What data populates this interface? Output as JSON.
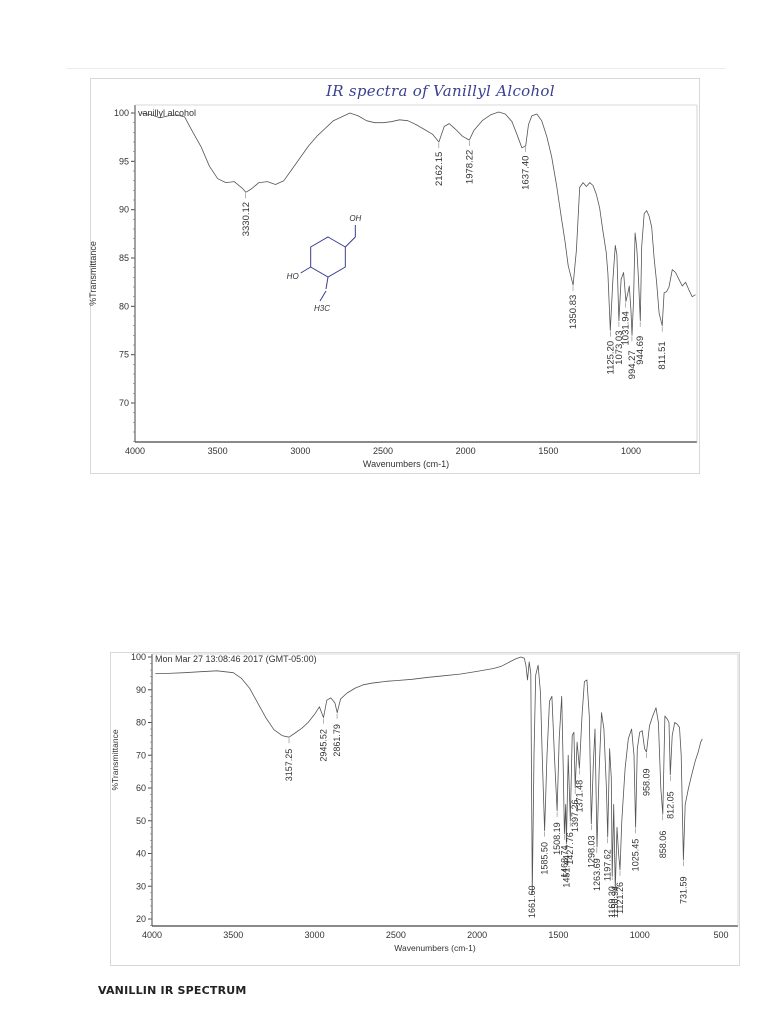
{
  "page": {
    "caption": "VANILLIN IR SPECTRUM"
  },
  "chart_data": [
    {
      "type": "line",
      "title": "IR spectra of Vanillyl Alcohol",
      "legend": "vanillyl alcohol",
      "xlabel": "Wavenumbers (cm-1)",
      "ylabel": "%Transmittance",
      "xlim": [
        4000,
        600
      ],
      "ylim": [
        66,
        100
      ],
      "x_ticks": [
        4000,
        3500,
        3000,
        2500,
        2000,
        1500,
        1000
      ],
      "y_ticks": [
        100,
        95,
        90,
        85,
        80,
        75,
        70
      ],
      "grid": false,
      "structure_annotations": [
        "OH",
        "HO",
        "H3C"
      ],
      "peaks": [
        {
          "label": "3330.12",
          "x": 3330.12,
          "y": 91.8
        },
        {
          "label": "2162.15",
          "x": 2162.15,
          "y": 97.0
        },
        {
          "label": "1978.22",
          "x": 1978.22,
          "y": 97.2
        },
        {
          "label": "1637.40",
          "x": 1637.4,
          "y": 96.6
        },
        {
          "label": "1350.83",
          "x": 1350.83,
          "y": 82.2
        },
        {
          "label": "1125.20",
          "x": 1125.2,
          "y": 77.5
        },
        {
          "label": "1073.03",
          "x": 1073.03,
          "y": 78.5
        },
        {
          "label": "1031.94",
          "x": 1031.94,
          "y": 80.5
        },
        {
          "label": "994.27",
          "x": 994.27,
          "y": 77.0
        },
        {
          "label": "944.69",
          "x": 944.69,
          "y": 78.5
        },
        {
          "label": "811.51",
          "x": 811.51,
          "y": 78.0
        }
      ],
      "series": [
        {
          "name": "vanillyl alcohol",
          "x": [
            3960,
            3900,
            3850,
            3800,
            3750,
            3700,
            3650,
            3600,
            3550,
            3500,
            3450,
            3400,
            3350,
            3330,
            3300,
            3250,
            3200,
            3150,
            3100,
            3050,
            3000,
            2950,
            2900,
            2850,
            2800,
            2750,
            2700,
            2650,
            2600,
            2550,
            2500,
            2450,
            2400,
            2350,
            2300,
            2250,
            2200,
            2162,
            2130,
            2100,
            2060,
            2020,
            1978,
            1950,
            1900,
            1850,
            1800,
            1760,
            1720,
            1690,
            1660,
            1637,
            1620,
            1600,
            1570,
            1540,
            1510,
            1480,
            1450,
            1420,
            1400,
            1380,
            1350,
            1330,
            1310,
            1290,
            1270,
            1250,
            1230,
            1210,
            1190,
            1170,
            1150,
            1140,
            1125,
            1110,
            1095,
            1085,
            1073,
            1060,
            1045,
            1031,
            1020,
            1010,
            1000,
            994,
            985,
            975,
            965,
            955,
            944,
            935,
            920,
            905,
            890,
            875,
            860,
            845,
            830,
            811,
            800,
            785,
            770,
            750,
            730,
            710,
            690,
            670,
            650,
            630,
            610
          ],
          "y": [
            100,
            99.8,
            99.5,
            99.7,
            99.8,
            99.6,
            98,
            96.5,
            94.5,
            93.2,
            92.8,
            92.9,
            92.2,
            91.8,
            92.1,
            92.8,
            92.9,
            92.6,
            93,
            94.2,
            95.4,
            96.6,
            97.6,
            98.4,
            99.2,
            99.6,
            100,
            99.7,
            99.2,
            99.0,
            99.0,
            99.1,
            99.3,
            99.2,
            98.8,
            98.3,
            97.8,
            97.0,
            98.6,
            98.9,
            98.3,
            97.6,
            97.2,
            98.2,
            99.2,
            99.8,
            100.1,
            99.9,
            99.1,
            97.8,
            96.4,
            96.6,
            98.8,
            99.7,
            99.9,
            99.2,
            97.6,
            95.5,
            92.5,
            89.0,
            86.8,
            84.2,
            82.2,
            85.8,
            92.3,
            92.8,
            92.4,
            92.8,
            92.5,
            91.6,
            90.2,
            87.8,
            85.6,
            83.4,
            77.5,
            82.6,
            86.3,
            85.3,
            78.5,
            82.8,
            83.5,
            80.5,
            81.3,
            82.1,
            79.5,
            77.0,
            80.5,
            87.6,
            86.0,
            83.0,
            78.5,
            86.2,
            89.6,
            89.9,
            89.3,
            88.2,
            85.0,
            82.5,
            79.3,
            78.0,
            81.4,
            81.5,
            82.0,
            83.8,
            83.5,
            82.8,
            82.1,
            82.5,
            81.7,
            81.0,
            81.2
          ]
        }
      ]
    },
    {
      "type": "line",
      "title": "Mon Mar 27 13:08:46 2017 (GMT-05:00)",
      "xlabel": "Wavenumbers (cm-1)",
      "ylabel": "%Transmittance",
      "xlim": [
        4000,
        500
      ],
      "ylim": [
        18,
        100
      ],
      "x_ticks": [
        4000,
        3500,
        3000,
        2500,
        2000,
        1500,
        1000,
        500
      ],
      "y_ticks": [
        100,
        90,
        80,
        70,
        60,
        50,
        40,
        30,
        20
      ],
      "grid": false,
      "peaks": [
        {
          "label": "3157.25",
          "x": 3157.25,
          "y": 75.5
        },
        {
          "label": "2945.52",
          "x": 2945.52,
          "y": 81.5
        },
        {
          "label": "2861.79",
          "x": 2861.79,
          "y": 83.0
        },
        {
          "label": "1661.60",
          "x": 1661.6,
          "y": 28.0
        },
        {
          "label": "1585.50",
          "x": 1585.5,
          "y": 47.0
        },
        {
          "label": "1508.19",
          "x": 1508.19,
          "y": 53.0
        },
        {
          "label": "1463.74",
          "x": 1463.74,
          "y": 46.0
        },
        {
          "label": "1451.44",
          "x": 1451.44,
          "y": 43.0
        },
        {
          "label": "1427.76",
          "x": 1427.76,
          "y": 50.0
        },
        {
          "label": "1397.26",
          "x": 1397.26,
          "y": 60.0
        },
        {
          "label": "1371.48",
          "x": 1371.48,
          "y": 66.0
        },
        {
          "label": "1298.03",
          "x": 1298.03,
          "y": 49.0
        },
        {
          "label": "1263.69",
          "x": 1263.69,
          "y": 42.0
        },
        {
          "label": "1197.62",
          "x": 1197.62,
          "y": 45.0
        },
        {
          "label": "1169.30",
          "x": 1169.3,
          "y": 33.0
        },
        {
          "label": "1150.94",
          "x": 1150.94,
          "y": 29.0
        },
        {
          "label": "1121.26",
          "x": 1121.26,
          "y": 35.0
        },
        {
          "label": "1025.45",
          "x": 1025.45,
          "y": 48.0
        },
        {
          "label": "958.09",
          "x": 958.09,
          "y": 71.0
        },
        {
          "label": "858.06",
          "x": 858.06,
          "y": 52.0
        },
        {
          "label": "812.05",
          "x": 812.05,
          "y": 64.0
        },
        {
          "label": "731.59",
          "x": 731.59,
          "y": 38.0
        }
      ],
      "series": [
        {
          "name": "vanillin",
          "x": [
            3980,
            3900,
            3800,
            3700,
            3600,
            3500,
            3450,
            3400,
            3350,
            3300,
            3250,
            3200,
            3157,
            3120,
            3080,
            3040,
            3000,
            2970,
            2945,
            2925,
            2900,
            2875,
            2861,
            2840,
            2800,
            2750,
            2700,
            2650,
            2600,
            2550,
            2500,
            2400,
            2300,
            2200,
            2100,
            2000,
            1900,
            1850,
            1800,
            1760,
            1730,
            1710,
            1700,
            1690,
            1680,
            1670,
            1661,
            1650,
            1640,
            1625,
            1610,
            1600,
            1585,
            1570,
            1555,
            1540,
            1525,
            1508,
            1495,
            1480,
            1470,
            1463,
            1455,
            1451,
            1440,
            1427,
            1415,
            1405,
            1397,
            1385,
            1371,
            1355,
            1340,
            1325,
            1310,
            1298,
            1285,
            1275,
            1263,
            1250,
            1235,
            1220,
            1205,
            1197,
            1185,
            1175,
            1169,
            1160,
            1150,
            1140,
            1130,
            1121,
            1110,
            1090,
            1070,
            1050,
            1035,
            1025,
            1015,
            1000,
            985,
            970,
            958,
            940,
            920,
            900,
            885,
            870,
            858,
            845,
            830,
            820,
            812,
            800,
            785,
            770,
            755,
            745,
            731,
            720,
            700,
            680,
            660,
            640,
            625,
            615
          ],
          "y": [
            95,
            95,
            95.2,
            95.5,
            95.8,
            95.2,
            93.5,
            90.5,
            86.0,
            81.5,
            77.8,
            76.0,
            75.5,
            76.8,
            78.2,
            80.0,
            82.5,
            84.8,
            81.5,
            86.8,
            87.5,
            86.0,
            83.0,
            87.2,
            89.0,
            90.5,
            91.5,
            92.0,
            92.3,
            92.6,
            92.8,
            93.2,
            93.8,
            94.3,
            94.8,
            95.6,
            96.5,
            97.2,
            98.5,
            99.5,
            100.0,
            99.6,
            97.5,
            93.0,
            98.5,
            95.0,
            28.0,
            70.0,
            94.5,
            97.5,
            89.0,
            70.0,
            47.0,
            70.0,
            86.5,
            88.0,
            70.0,
            53.0,
            75.0,
            88.0,
            65.0,
            46.0,
            55.0,
            43.0,
            70.0,
            50.0,
            76.0,
            77.0,
            60.0,
            74.0,
            66.0,
            82.0,
            92.5,
            93.0,
            82.0,
            49.0,
            68.0,
            78.0,
            42.0,
            65.0,
            83.0,
            78.0,
            60.0,
            45.0,
            72.0,
            63.0,
            33.0,
            55.0,
            29.0,
            48.0,
            40.0,
            35.0,
            50.0,
            66.0,
            75.0,
            78.0,
            70.0,
            48.0,
            72.0,
            77.0,
            77.5,
            72.0,
            71.0,
            79.0,
            82.0,
            84.5,
            80.0,
            60.0,
            52.0,
            82.0,
            81.0,
            80.0,
            64.0,
            76.0,
            80.0,
            79.5,
            78.5,
            70.0,
            38.0,
            55.0,
            60.0,
            64.0,
            68.0,
            71.0,
            74.0,
            75.0
          ]
        }
      ]
    }
  ]
}
